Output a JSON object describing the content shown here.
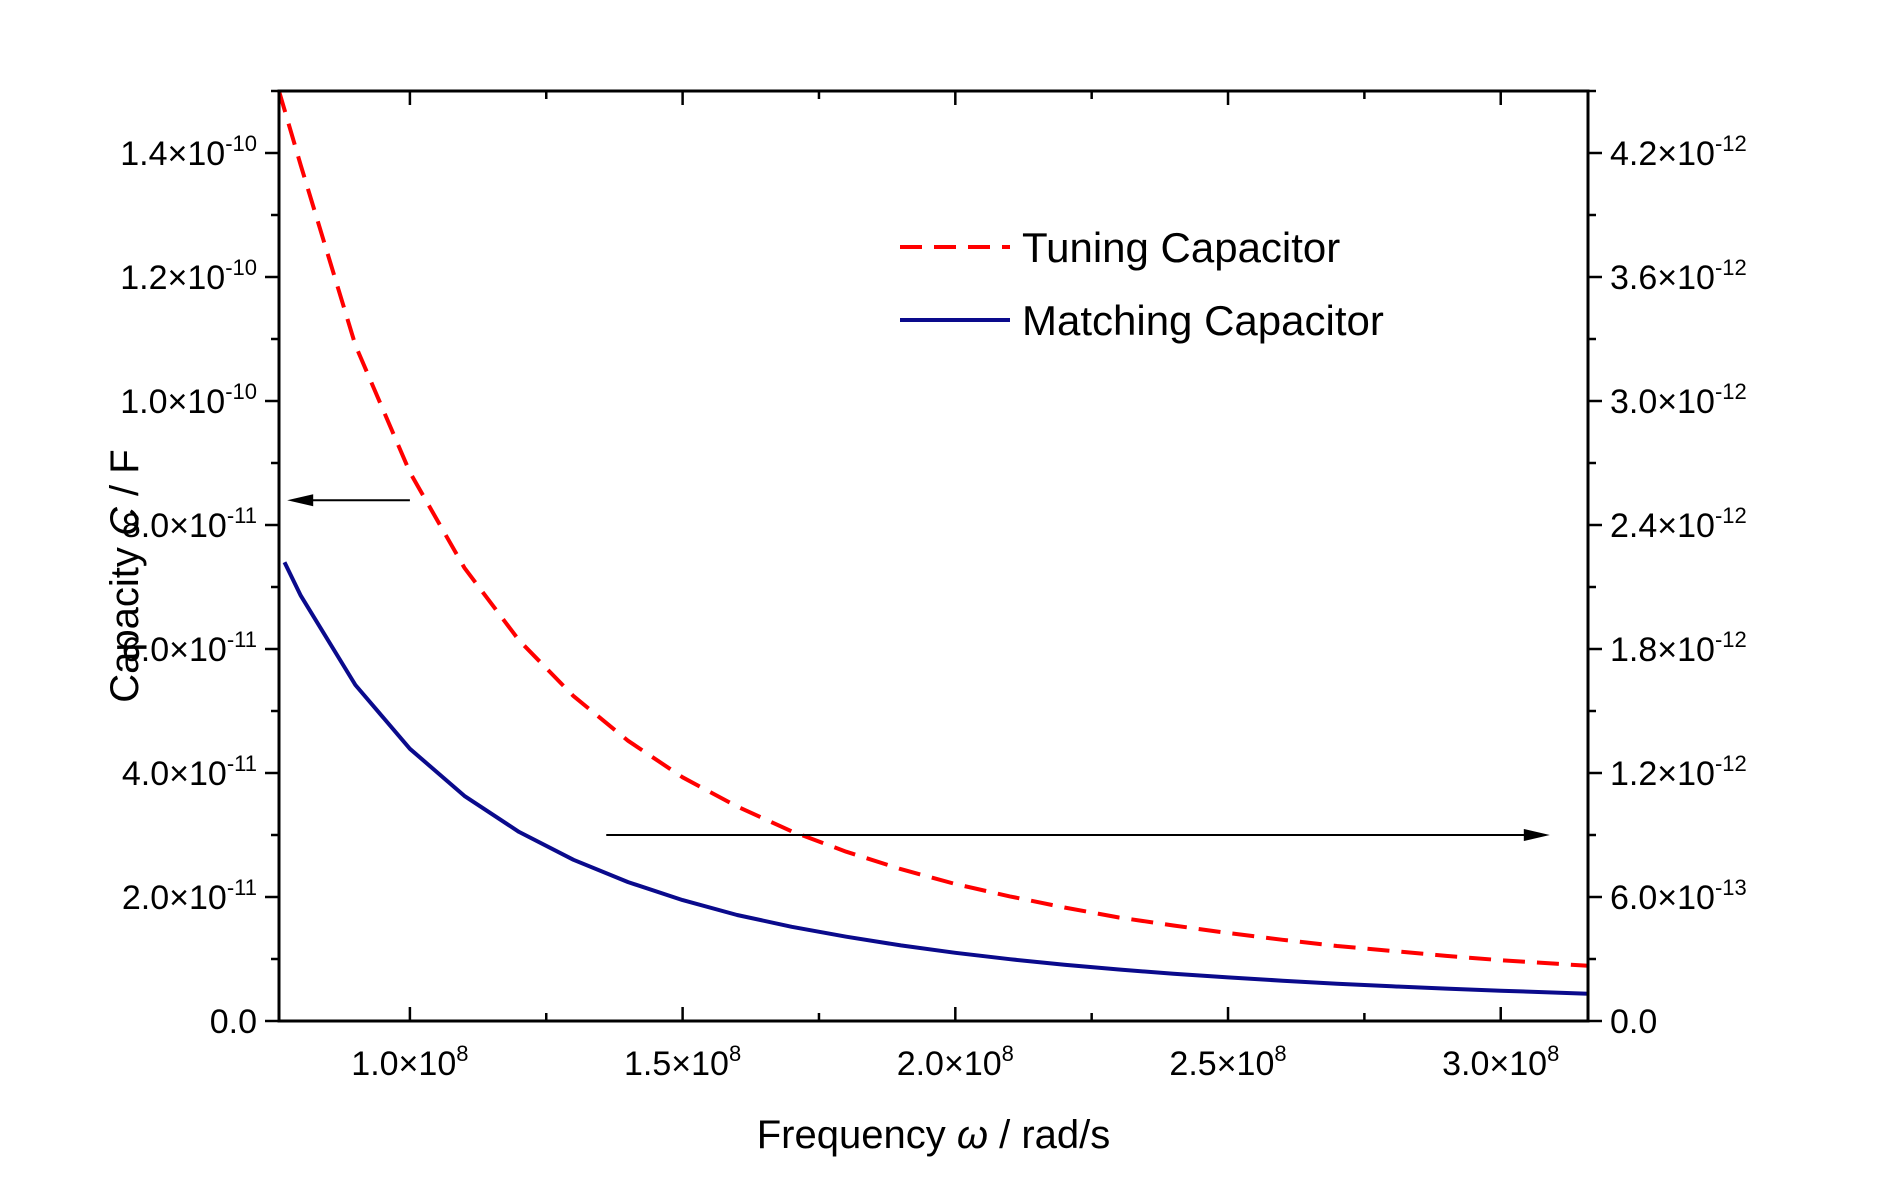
{
  "chart_data": {
    "type": "line",
    "title": "",
    "xlabel": {
      "prefix": "Frequency ",
      "symbol": "ω",
      "suffix": " / rad/s"
    },
    "ylabel_left": {
      "prefix": "Capacity ",
      "symbol": "C",
      "suffix": " / F"
    },
    "ylabel_right": "",
    "xlim": [
      76000000,
      316000000
    ],
    "ylim_left": [
      0,
      1.5e-10
    ],
    "ylim_right": [
      0,
      4.5e-12
    ],
    "x_ticks": [
      {
        "value": 100000000,
        "mantissa": "1.0×10",
        "exp": "8"
      },
      {
        "value": 150000000,
        "mantissa": "1.5×10",
        "exp": "8"
      },
      {
        "value": 200000000,
        "mantissa": "2.0×10",
        "exp": "8"
      },
      {
        "value": 250000000,
        "mantissa": "2.5×10",
        "exp": "8"
      },
      {
        "value": 300000000,
        "mantissa": "3.0×10",
        "exp": "8"
      }
    ],
    "y_left_ticks": [
      {
        "value": 0,
        "mantissa": "0.0",
        "exp": ""
      },
      {
        "value": 2e-11,
        "mantissa": "2.0×10",
        "exp": "-11"
      },
      {
        "value": 4e-11,
        "mantissa": "4.0×10",
        "exp": "-11"
      },
      {
        "value": 6e-11,
        "mantissa": "6.0×10",
        "exp": "-11"
      },
      {
        "value": 8e-11,
        "mantissa": "8.0×10",
        "exp": "-11"
      },
      {
        "value": 1e-10,
        "mantissa": "1.0×10",
        "exp": "-10"
      },
      {
        "value": 1.2e-10,
        "mantissa": "1.2×10",
        "exp": "-10"
      },
      {
        "value": 1.4e-10,
        "mantissa": "1.4×10",
        "exp": "-10"
      }
    ],
    "y_right_ticks": [
      {
        "value": 0,
        "mantissa": "0.0",
        "exp": ""
      },
      {
        "value": 6e-13,
        "mantissa": "6.0×10",
        "exp": "-13"
      },
      {
        "value": 1.2e-12,
        "mantissa": "1.2×10",
        "exp": "-12"
      },
      {
        "value": 1.8e-12,
        "mantissa": "1.8×10",
        "exp": "-12"
      },
      {
        "value": 2.4e-12,
        "mantissa": "2.4×10",
        "exp": "-12"
      },
      {
        "value": 3e-12,
        "mantissa": "3.0×10",
        "exp": "-12"
      },
      {
        "value": 3.6e-12,
        "mantissa": "3.6×10",
        "exp": "-12"
      },
      {
        "value": 4.2e-12,
        "mantissa": "4.2×10",
        "exp": "-12"
      }
    ],
    "series": [
      {
        "name": "Tuning Capacitor",
        "axis": "left",
        "style": "dashed",
        "color": "#ff0000",
        "x": [
          76000000,
          80000000,
          90000000,
          100000000,
          110000000,
          120000000,
          130000000,
          140000000,
          150000000,
          160000000,
          170000000,
          180000000,
          190000000,
          200000000,
          210000000,
          220000000,
          230000000,
          240000000,
          250000000,
          260000000,
          270000000,
          280000000,
          290000000,
          300000000,
          316000000
        ],
        "y": [
          1.53e-10,
          1.38e-10,
          1.09e-10,
          8.85e-11,
          7.31e-11,
          6.14e-11,
          5.24e-11,
          4.52e-11,
          3.93e-11,
          3.46e-11,
          3.06e-11,
          2.73e-11,
          2.45e-11,
          2.21e-11,
          2.01e-11,
          1.83e-11,
          1.67e-11,
          1.54e-11,
          1.42e-11,
          1.31e-11,
          1.21e-11,
          1.13e-11,
          1.05e-11,
          9.8e-12,
          8.9e-12
        ]
      },
      {
        "name": "Matching Capacitor",
        "axis": "left",
        "style": "solid",
        "color": "#0a0a8c",
        "x": [
          77000000,
          80000000,
          90000000,
          100000000,
          110000000,
          120000000,
          130000000,
          140000000,
          150000000,
          160000000,
          170000000,
          180000000,
          190000000,
          200000000,
          210000000,
          220000000,
          230000000,
          240000000,
          250000000,
          260000000,
          270000000,
          280000000,
          290000000,
          300000000,
          316000000
        ],
        "y": [
          7.4e-11,
          6.86e-11,
          5.42e-11,
          4.39e-11,
          3.63e-11,
          3.05e-11,
          2.6e-11,
          2.24e-11,
          1.95e-11,
          1.71e-11,
          1.52e-11,
          1.36e-11,
          1.22e-11,
          1.1e-11,
          9.96e-12,
          9.07e-12,
          8.3e-12,
          7.62e-12,
          7.03e-12,
          6.5e-12,
          6.02e-12,
          5.6e-12,
          5.22e-12,
          4.88e-12,
          4.4e-12
        ]
      }
    ],
    "annotations": [
      {
        "type": "arrow",
        "direction": "left",
        "from": {
          "x": 100000000,
          "y": 8.4e-11
        },
        "to": {
          "x": 77500000,
          "y": 8.4e-11
        },
        "meaning": "series belongs to left axis"
      },
      {
        "type": "arrow",
        "direction": "right",
        "from": {
          "x": 136000000,
          "y": 3e-11
        },
        "to": {
          "x": 309000000,
          "y": 3e-11
        },
        "meaning": "series belongs to right axis"
      }
    ],
    "legend": {
      "position": "top-right",
      "entries": [
        "Tuning Capacitor",
        "Matching Capacitor"
      ]
    },
    "grid": false
  }
}
